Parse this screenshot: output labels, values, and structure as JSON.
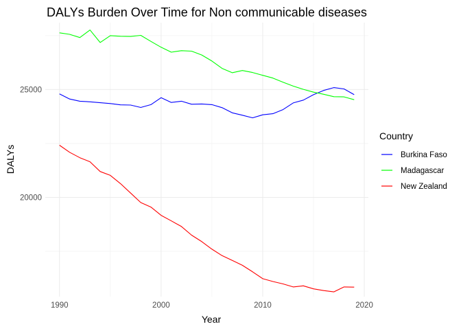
{
  "chart_data": {
    "type": "line",
    "title": "DALYs Burden Over Time for Non communicable diseases",
    "xlabel": "Year",
    "ylabel": "DALYs",
    "xlim": [
      1988.6,
      2020.4
    ],
    "ylim": [
      15400,
      28100
    ],
    "x_ticks": [
      1990,
      2000,
      2010,
      2020
    ],
    "y_ticks": [
      20000,
      25000
    ],
    "grid": true,
    "legend": {
      "title": "Country",
      "position": "right"
    },
    "x": [
      1990,
      1991,
      1992,
      1993,
      1994,
      1995,
      1996,
      1997,
      1998,
      1999,
      2000,
      2001,
      2002,
      2003,
      2004,
      2005,
      2006,
      2007,
      2008,
      2009,
      2010,
      2011,
      2012,
      2013,
      2014,
      2015,
      2016,
      2017,
      2018,
      2019
    ],
    "series": [
      {
        "name": "Burkina Faso",
        "color": "#0000ff",
        "values": [
          24800,
          24560,
          24460,
          24430,
          24390,
          24350,
          24290,
          24280,
          24170,
          24300,
          24620,
          24400,
          24460,
          24320,
          24330,
          24300,
          24160,
          23920,
          23810,
          23690,
          23830,
          23880,
          24070,
          24380,
          24510,
          24760,
          24960,
          25090,
          25030,
          24760
        ]
      },
      {
        "name": "Madagascar",
        "color": "#00ff00",
        "values": [
          27630,
          27560,
          27410,
          27760,
          27180,
          27500,
          27470,
          27460,
          27510,
          27230,
          26960,
          26730,
          26800,
          26780,
          26600,
          26320,
          25980,
          25780,
          25880,
          25790,
          25660,
          25530,
          25340,
          25160,
          25010,
          24880,
          24780,
          24670,
          24660,
          24530
        ]
      },
      {
        "name": "New Zealand",
        "color": "#ff0000",
        "values": [
          22420,
          22090,
          21840,
          21650,
          21200,
          21020,
          20640,
          20200,
          19760,
          19550,
          19170,
          18910,
          18650,
          18250,
          17950,
          17600,
          17300,
          17080,
          16850,
          16550,
          16230,
          16100,
          15990,
          15850,
          15900,
          15760,
          15680,
          15620,
          15850,
          15840
        ]
      }
    ]
  }
}
